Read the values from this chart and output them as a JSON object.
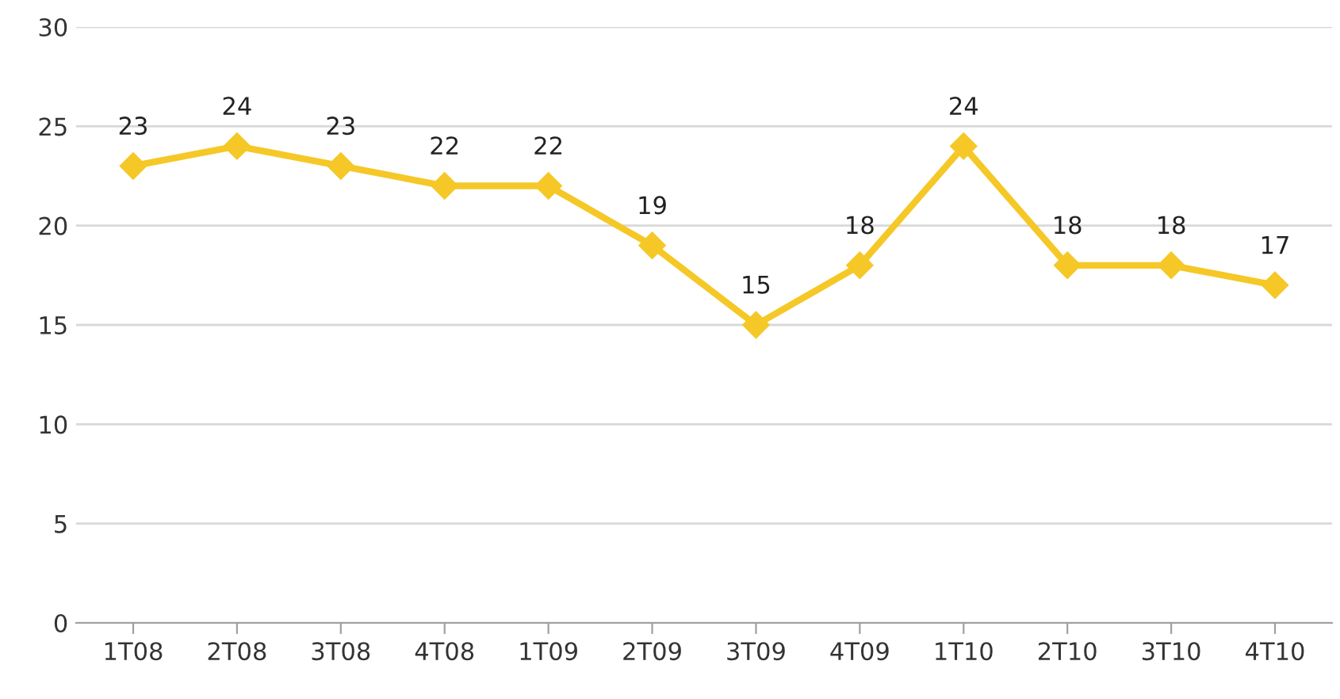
{
  "chart_data": {
    "type": "line",
    "categories": [
      "1T08",
      "2T08",
      "3T08",
      "4T08",
      "1T09",
      "2T09",
      "3T09",
      "4T09",
      "1T10",
      "2T10",
      "3T10",
      "4T10"
    ],
    "series": [
      {
        "color": "#f5c827",
        "values": [
          23,
          24,
          23,
          22,
          22,
          19,
          15,
          18,
          24,
          18,
          18,
          17
        ]
      }
    ],
    "ylim": [
      0,
      30
    ],
    "yticks": [
      0,
      5,
      10,
      15,
      20,
      25,
      30
    ],
    "grid": "y",
    "marker": "diamond",
    "line_style": "solid",
    "data_labels": true
  }
}
